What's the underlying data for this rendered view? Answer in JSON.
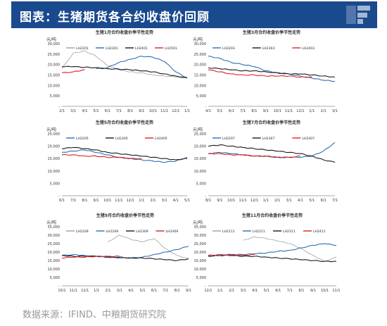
{
  "page": {
    "title": "图表：生猪期货各合约收盘价回顾",
    "source": "数据来源：IFIND、中粮期货研究院",
    "brand_color": "#1a4a8e"
  },
  "chart_data": [
    {
      "type": "line",
      "title": "生猪1月合约收盘价季节性走势",
      "ylabel": "元/吨",
      "ylim": [
        0,
        30000
      ],
      "yticks": [
        "-",
        "5,000",
        "10,000",
        "15,000",
        "20,000",
        "25,000",
        "30,000"
      ],
      "categories": [
        "2/1",
        "3/1",
        "4/1",
        "5/1",
        "6/1",
        "7/1",
        "8/1",
        "9/1",
        "10/1",
        "11/1",
        "12/1",
        "1/1"
      ],
      "series": [
        {
          "name": "LH2201",
          "color": "#a0a0a0",
          "values": [
            18000,
            25500,
            26500,
            24000,
            19500,
            17500,
            16500,
            16000,
            15000,
            14500,
            14000,
            14200
          ]
        },
        {
          "name": "LH2301",
          "color": "#2f6fb5",
          "values": [
            null,
            null,
            null,
            18000,
            18500,
            21000,
            22500,
            24000,
            23500,
            21500,
            16500,
            13500
          ]
        },
        {
          "name": "LH2401",
          "color": "#1a1a1a",
          "values": [
            19000,
            19000,
            18700,
            18500,
            18000,
            17800,
            17500,
            17000,
            16500,
            15500,
            14500,
            13500
          ]
        },
        {
          "name": "LH2501",
          "color": "#e02020",
          "values": [
            16000,
            16500,
            17500,
            null,
            null,
            null,
            null,
            null,
            null,
            null,
            null,
            null
          ]
        }
      ]
    },
    {
      "type": "line",
      "title": "生猪3月合约收盘价季节性走势",
      "ylabel": "元/吨",
      "ylim": [
        0,
        30000
      ],
      "yticks": [
        "-",
        "5,000",
        "10,000",
        "15,000",
        "20,000",
        "25,000",
        "30,000"
      ],
      "categories": [
        "4/1",
        "5/1",
        "6/1",
        "7/1",
        "8/1",
        "9/1",
        "10/1",
        "11/1",
        "12/1",
        "1/1",
        "2/1",
        "3/1"
      ],
      "series": [
        {
          "name": "LH2203",
          "color": "#2f6fb5",
          "values": [
            24000,
            23000,
            21000,
            20000,
            19000,
            17000,
            16000,
            15500,
            14500,
            13500,
            12500,
            12000
          ]
        },
        {
          "name": "LH2303",
          "color": "#1a1a1a",
          "values": [
            18500,
            18000,
            17500,
            17000,
            17000,
            16500,
            16000,
            15500,
            15500,
            15000,
            14500,
            14000
          ]
        },
        {
          "name": "LH2403",
          "color": "#e02020",
          "values": [
            17500,
            16500,
            15500,
            15000,
            15000,
            14500,
            14500,
            14500,
            14000,
            14000,
            null,
            null
          ]
        }
      ]
    },
    {
      "type": "line",
      "title": "生猪5月合约收盘价季节性走势",
      "ylabel": "元/吨",
      "ylim": [
        0,
        25000
      ],
      "yticks": [
        "-",
        "5,000",
        "10,000",
        "15,000",
        "20,000",
        "25,000"
      ],
      "categories": [
        "6/1",
        "7/1",
        "8/1",
        "9/1",
        "10/1",
        "11/1",
        "12/1",
        "1/1",
        "2/1",
        "3/1",
        "4/1",
        "5/1"
      ],
      "series": [
        {
          "name": "LH2205",
          "color": "#2f6fb5",
          "values": [
            17500,
            18000,
            18500,
            17500,
            16500,
            15500,
            15000,
            14500,
            14000,
            13500,
            14000,
            15500
          ]
        },
        {
          "name": "LH2305",
          "color": "#1a1a1a",
          "values": [
            19000,
            19500,
            19000,
            18500,
            17500,
            17000,
            16500,
            16000,
            15500,
            15000,
            14500,
            15000
          ]
        },
        {
          "name": "LH2405",
          "color": "#e02020",
          "values": [
            16500,
            16500,
            16000,
            16000,
            15500,
            15500,
            15000,
            15000,
            null,
            null,
            null,
            null
          ]
        }
      ]
    },
    {
      "type": "line",
      "title": "生猪7月合约收盘价季节性走势",
      "ylabel": "元/吨",
      "ylim": [
        0,
        25000
      ],
      "yticks": [
        "-",
        "5,000",
        "10,000",
        "15,000",
        "20,000",
        "25,000"
      ],
      "categories": [
        "8/1",
        "9/1",
        "10/1",
        "11/1",
        "12/1",
        "1/1",
        "2/1",
        "3/1",
        "4/1",
        "5/1",
        "6/1",
        "7/1"
      ],
      "series": [
        {
          "name": "LH2207",
          "color": "#2f6fb5",
          "values": [
            17000,
            17500,
            17000,
            16500,
            16000,
            16000,
            15500,
            15500,
            15500,
            16000,
            18000,
            21500
          ]
        },
        {
          "name": "LH2307",
          "color": "#1a1a1a",
          "values": [
            20000,
            20500,
            20000,
            19500,
            19000,
            18500,
            18000,
            17500,
            17000,
            16000,
            14500,
            13500
          ]
        },
        {
          "name": "LH2407",
          "color": "#e02020",
          "values": [
            17000,
            17000,
            16500,
            16500,
            16000,
            16000,
            15500,
            15500,
            16000,
            null,
            null,
            null
          ]
        }
      ]
    },
    {
      "type": "line",
      "title": "生猪9月合约收盘价季节性走势",
      "ylabel": "元/吨",
      "ylim": [
        0,
        35000
      ],
      "yticks": [
        "-",
        "5,000",
        "10,000",
        "15,000",
        "20,000",
        "25,000",
        "30,000",
        "35,000"
      ],
      "categories": [
        "10/1",
        "11/1",
        "12/1",
        "1/1",
        "2/1",
        "3/1",
        "4/1",
        "5/1",
        "6/1",
        "7/1",
        "8/1",
        "9/1"
      ],
      "series": [
        {
          "name": "LH2109",
          "color": "#a0a0a0",
          "values": [
            null,
            null,
            null,
            null,
            26000,
            30000,
            27500,
            26000,
            28000,
            22000,
            18000,
            16000
          ]
        },
        {
          "name": "LH2209",
          "color": "#2f6fb5",
          "values": [
            18000,
            18500,
            18000,
            17500,
            17000,
            16500,
            16500,
            17000,
            18500,
            20000,
            21500,
            23500
          ]
        },
        {
          "name": "LH2309",
          "color": "#1a1a1a",
          "values": [
            18000,
            17500,
            17500,
            17500,
            17000,
            17000,
            16500,
            16500,
            16000,
            15500,
            15000,
            16000
          ]
        },
        {
          "name": "LH2409",
          "color": "#e02020",
          "values": [
            16500,
            17000,
            17000,
            17500,
            17500,
            17500,
            null,
            null,
            null,
            null,
            null,
            null
          ]
        }
      ]
    },
    {
      "type": "line",
      "title": "生猪11月合约收盘价季节性走势",
      "ylabel": "元/吨",
      "ylim": [
        0,
        35000
      ],
      "yticks": [
        "-",
        "5,000",
        "10,000",
        "15,000",
        "20,000",
        "25,000",
        "30,000",
        "35,000"
      ],
      "categories": [
        "12/1",
        "1/1",
        "2/1",
        "3/1",
        "4/1",
        "5/1",
        "6/1",
        "7/1",
        "8/1",
        "9/1",
        "10/1",
        "11/1"
      ],
      "series": [
        {
          "name": "LH2111",
          "color": "#a0a0a0",
          "values": [
            null,
            null,
            null,
            27000,
            29000,
            28000,
            26500,
            25000,
            22000,
            18000,
            14500,
            17000
          ]
        },
        {
          "name": "LH2211",
          "color": "#2f6fb5",
          "values": [
            18000,
            18500,
            18500,
            18500,
            19000,
            19500,
            20500,
            21000,
            22500,
            24000,
            25000,
            24000
          ]
        },
        {
          "name": "LH2311",
          "color": "#1a1a1a",
          "values": [
            17500,
            18000,
            18000,
            17500,
            17500,
            17000,
            16500,
            16000,
            15500,
            15000,
            14500,
            14500
          ]
        },
        {
          "name": "LH2411",
          "color": "#e02020",
          "values": [
            18000,
            18000,
            18500,
            18000,
            18500,
            null,
            null,
            null,
            null,
            null,
            null,
            null
          ]
        }
      ]
    }
  ]
}
